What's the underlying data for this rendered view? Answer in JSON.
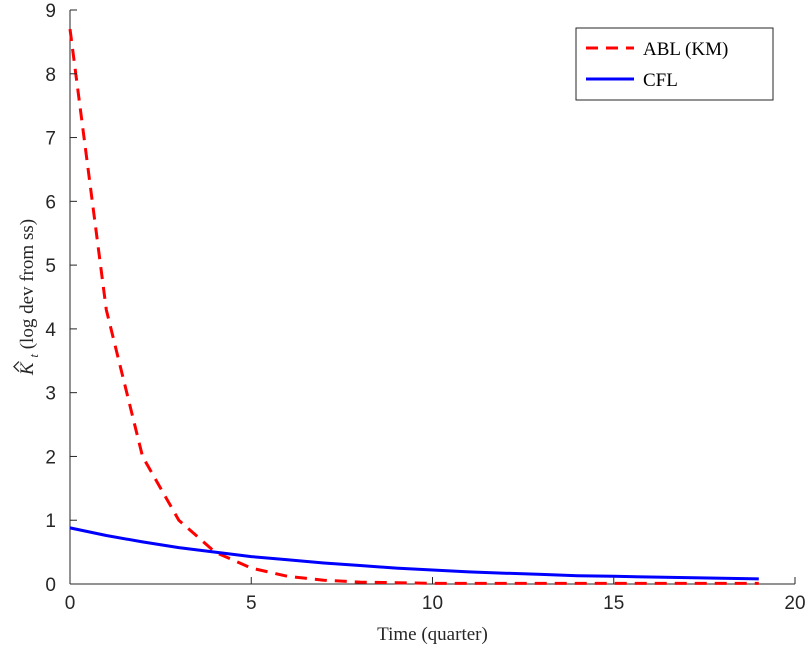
{
  "chart_data": {
    "type": "line",
    "title": "",
    "xlabel": "Time (quarter)",
    "ylabel_main": "K",
    "ylabel_subscript": "t",
    "ylabel_suffix": " (log dev from ss)",
    "xlim": [
      0,
      20
    ],
    "ylim": [
      0,
      9
    ],
    "xticks": [
      0,
      5,
      10,
      15,
      20
    ],
    "yticks": [
      0,
      1,
      2,
      3,
      4,
      5,
      6,
      7,
      8,
      9
    ],
    "xtick_labels": [
      "0",
      "5",
      "10",
      "15",
      "20"
    ],
    "ytick_labels": [
      "0",
      "1",
      "2",
      "3",
      "4",
      "5",
      "6",
      "7",
      "8",
      "9"
    ],
    "grid": false,
    "legend_position": "top-right",
    "series": [
      {
        "name": "ABL (KM)",
        "color": "#ff0000",
        "style": "dashed",
        "x": [
          0,
          1,
          2,
          3,
          4,
          5,
          6,
          7,
          8,
          9,
          10,
          11,
          12,
          13,
          14,
          15,
          16,
          17,
          18,
          19
        ],
        "y": [
          8.7,
          4.3,
          2.0,
          1.0,
          0.5,
          0.25,
          0.12,
          0.06,
          0.03,
          0.02,
          0.01,
          0.01,
          0.01,
          0.01,
          0.01,
          0.01,
          0.01,
          0.01,
          0.01,
          0.01
        ]
      },
      {
        "name": "CFL",
        "color": "#0000ff",
        "style": "solid",
        "x": [
          0,
          1,
          2,
          3,
          4,
          5,
          6,
          7,
          8,
          9,
          10,
          11,
          12,
          13,
          14,
          15,
          16,
          17,
          18,
          19
        ],
        "y": [
          0.88,
          0.76,
          0.66,
          0.57,
          0.5,
          0.43,
          0.38,
          0.33,
          0.29,
          0.25,
          0.22,
          0.19,
          0.17,
          0.15,
          0.13,
          0.12,
          0.11,
          0.1,
          0.09,
          0.08
        ]
      }
    ]
  }
}
